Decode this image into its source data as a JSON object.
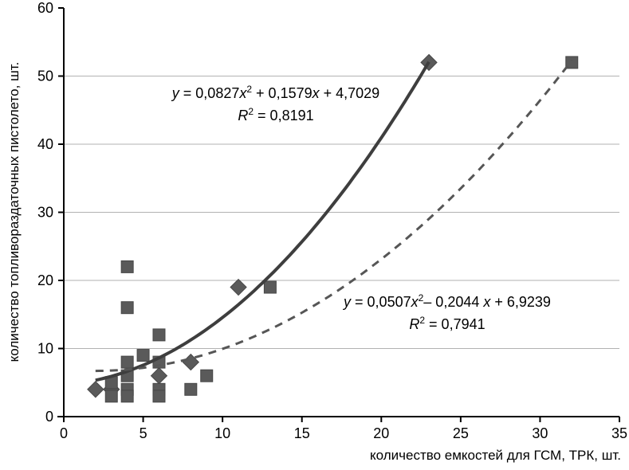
{
  "page": {
    "background": "#ffffff"
  },
  "colors": {
    "marker": "#5a5a5a",
    "marker_edge": "#474747",
    "trend_solid": "#3e3e3e",
    "trend_dashed": "#565656",
    "grid": "#b2b2b2",
    "axis": "#000000",
    "text": "#000000"
  },
  "chart_data": {
    "type": "scatter",
    "title": "",
    "xlabel": "количество емкостей для ГСМ, ТРК, шт.",
    "ylabel": "количество топливораздаточных пистолето, шт.",
    "xlim": [
      0,
      35
    ],
    "ylim": [
      0,
      60
    ],
    "xticks": [
      0,
      5,
      10,
      15,
      20,
      25,
      30,
      35
    ],
    "yticks": [
      0,
      10,
      20,
      30,
      40,
      50,
      60
    ],
    "grid_y": [
      10,
      20,
      30,
      40,
      50
    ],
    "legend": "none",
    "series": [
      {
        "marker": "diamond",
        "points": [
          [
            2,
            4
          ],
          [
            3,
            4
          ],
          [
            6,
            6
          ],
          [
            8,
            8
          ],
          [
            11,
            19
          ],
          [
            23,
            52
          ]
        ],
        "trendline": {
          "type": "quadratic",
          "a": 0.0827,
          "b": 0.1579,
          "c": 4.7029,
          "style": "solid",
          "x_range": [
            2,
            23
          ]
        },
        "equation": "y = 0,0827x² + 0,1579x + 4,7029",
        "r_squared": "R² = 0,8191"
      },
      {
        "marker": "square",
        "points": [
          [
            3,
            5
          ],
          [
            3,
            3
          ],
          [
            4,
            22
          ],
          [
            4,
            16
          ],
          [
            4,
            8
          ],
          [
            4,
            6
          ],
          [
            4,
            4
          ],
          [
            4,
            3
          ],
          [
            5,
            9
          ],
          [
            6,
            12
          ],
          [
            6,
            8
          ],
          [
            6,
            4
          ],
          [
            6,
            3
          ],
          [
            8,
            4
          ],
          [
            9,
            6
          ],
          [
            13,
            19
          ],
          [
            32,
            52
          ]
        ],
        "trendline": {
          "type": "quadratic",
          "a": 0.0507,
          "b": -0.2044,
          "c": 6.9239,
          "style": "dashed",
          "x_range": [
            2,
            32
          ]
        },
        "equation": "y = 0,0507x² – 0,2044 x + 6,9239",
        "r_squared": "R² = 0,7941"
      }
    ]
  },
  "annotations": {
    "eq_solid": {
      "line1": [
        [
          "i",
          "y"
        ],
        [
          "n",
          " = 0,0827"
        ],
        [
          "i",
          "x"
        ],
        [
          "s",
          "2"
        ],
        [
          "n",
          " + 0,1579"
        ],
        [
          "i",
          "x"
        ],
        [
          "n",
          " + 4,7029"
        ]
      ],
      "line2": [
        [
          "i",
          "R"
        ],
        [
          "s",
          "2"
        ],
        [
          "n",
          " = 0,8191"
        ]
      ]
    },
    "eq_dashed": {
      "line1": [
        [
          "i",
          "y"
        ],
        [
          "n",
          " = 0,0507"
        ],
        [
          "i",
          "x"
        ],
        [
          "s",
          "2"
        ],
        [
          "n",
          "– 0,2044 "
        ],
        [
          "i",
          "x"
        ],
        [
          "n",
          " + 6,9239"
        ]
      ],
      "line2": [
        [
          "i",
          "R"
        ],
        [
          "s",
          "2"
        ],
        [
          "n",
          " = 0,7941"
        ]
      ]
    }
  }
}
